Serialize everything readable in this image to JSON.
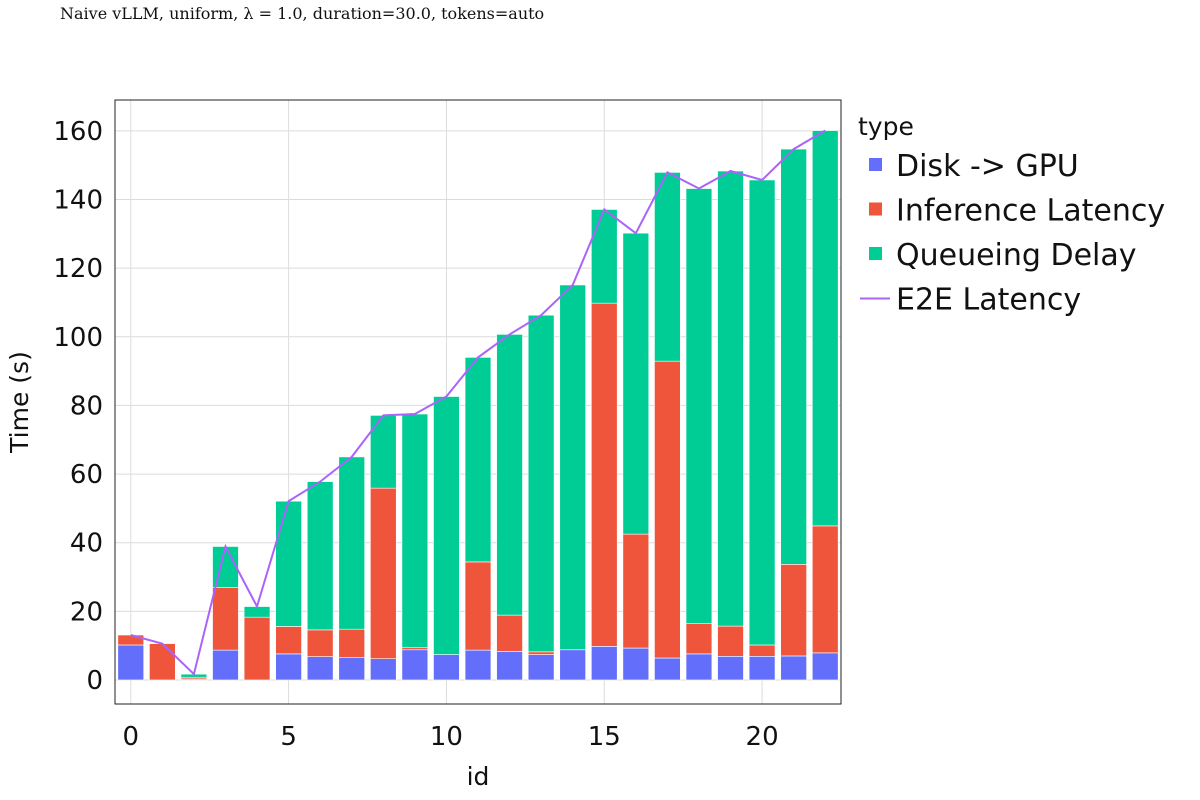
{
  "chart_data": {
    "type": "bar",
    "stacked": true,
    "title": "Naive vLLM, uniform, λ = 1.0, duration=30.0, tokens=auto",
    "xlabel": "id",
    "ylabel": "Time (s)",
    "xlim": [
      -0.5,
      22.5
    ],
    "ylim": [
      -7,
      169
    ],
    "x_ticks": [
      0,
      5,
      10,
      15,
      20
    ],
    "y_ticks": [
      0,
      20,
      40,
      60,
      80,
      100,
      120,
      140,
      160
    ],
    "grid": true,
    "legend": {
      "title": "type",
      "placement": "right"
    },
    "x": [
      0,
      1,
      2,
      3,
      4,
      5,
      6,
      7,
      8,
      9,
      10,
      11,
      12,
      13,
      14,
      15,
      16,
      17,
      18,
      19,
      20,
      21,
      22
    ],
    "series": [
      {
        "name": "Disk -> GPU",
        "kind": "bar",
        "color": "#636efa",
        "values": [
          10.2,
          0,
          0.3,
          8.7,
          0,
          7.6,
          6.8,
          6.5,
          6.2,
          8.8,
          7.4,
          8.7,
          8.3,
          7.4,
          8.8,
          9.8,
          9.3,
          6.4,
          7.6,
          6.9,
          6.9,
          7.0,
          7.9
        ]
      },
      {
        "name": "Inference Latency",
        "kind": "bar",
        "color": "#ef553b",
        "values": [
          2.9,
          10.6,
          0.5,
          18.3,
          18.3,
          8.0,
          7.8,
          8.3,
          49.7,
          0.6,
          0,
          25.7,
          10.6,
          0.8,
          0,
          100.0,
          33.2,
          86.5,
          8.8,
          8.8,
          3.3,
          26.7,
          37.0
        ]
      },
      {
        "name": "Queueing Delay",
        "kind": "bar",
        "color": "#00cc96",
        "values": [
          0,
          0,
          0.9,
          11.9,
          3.1,
          36.5,
          43.2,
          50.2,
          21.2,
          68.1,
          75.2,
          59.6,
          81.8,
          98.1,
          106.3,
          27.3,
          87.7,
          55.0,
          126.8,
          132.6,
          135.5,
          121.0,
          115.2
        ]
      },
      {
        "name": "E2E Latency",
        "kind": "line",
        "color": "#ab63fa",
        "values": [
          13.1,
          10.6,
          1.7,
          38.9,
          21.4,
          52.1,
          57.8,
          65.0,
          77.1,
          77.5,
          82.6,
          94.0,
          100.7,
          106.3,
          115.1,
          137.1,
          130.2,
          147.9,
          143.2,
          148.3,
          145.7,
          154.7,
          160.1
        ]
      }
    ]
  }
}
